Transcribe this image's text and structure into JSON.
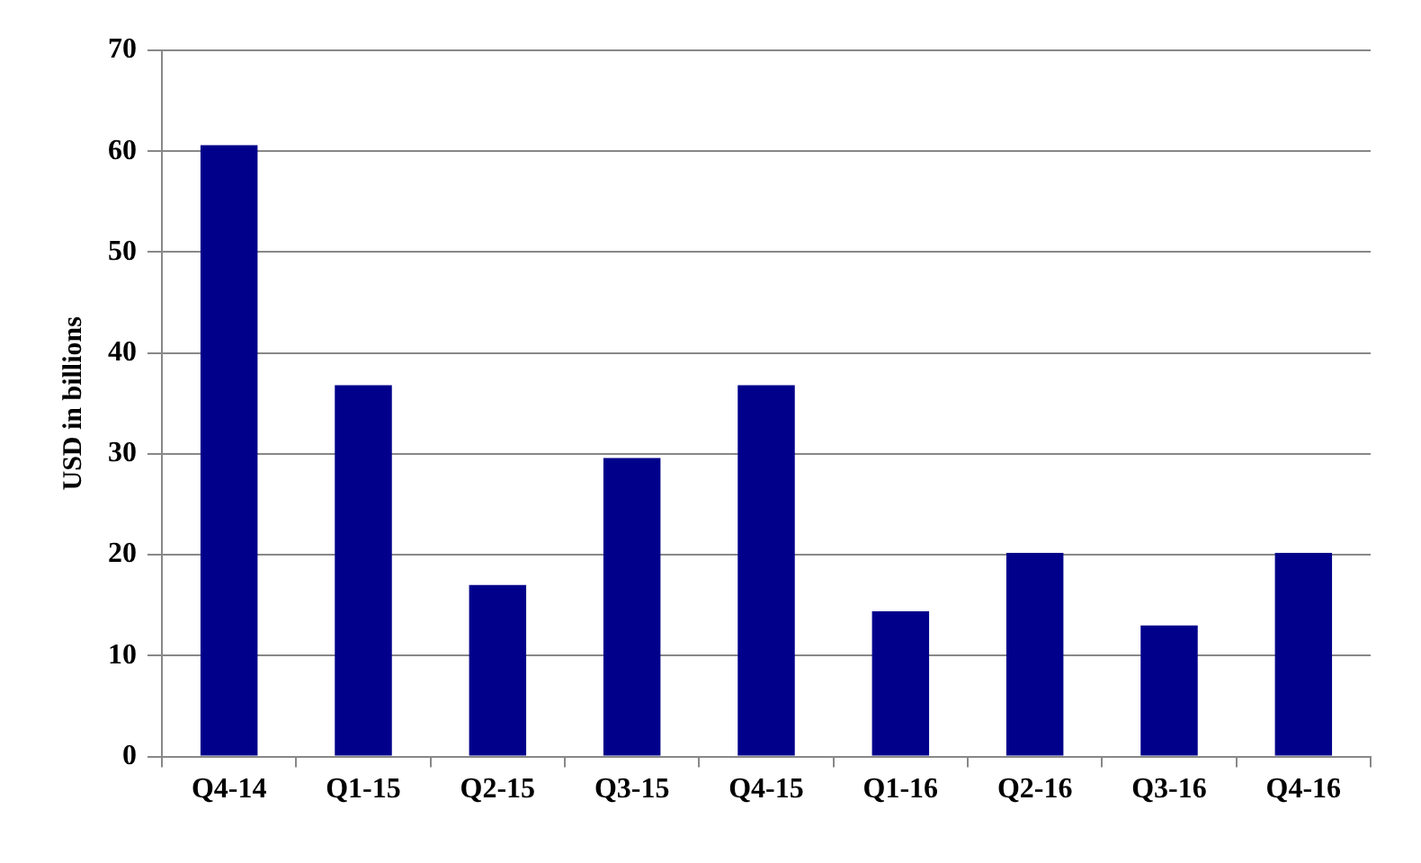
{
  "chart_data": {
    "type": "bar",
    "ylabel": "USD in billions",
    "categories": [
      "Q4-14",
      "Q1-15",
      "Q2-15",
      "Q3-15",
      "Q4-15",
      "Q1-16",
      "Q2-16",
      "Q3-16",
      "Q4-16"
    ],
    "values": [
      60.6,
      36.8,
      17.0,
      29.6,
      36.8,
      14.4,
      20.2,
      13.0,
      20.2
    ],
    "color": "#00008b",
    "ylim": [
      0,
      70
    ],
    "yticks": [
      0,
      10,
      20,
      30,
      40,
      50,
      60,
      70
    ],
    "grid": "y",
    "legend": false
  }
}
